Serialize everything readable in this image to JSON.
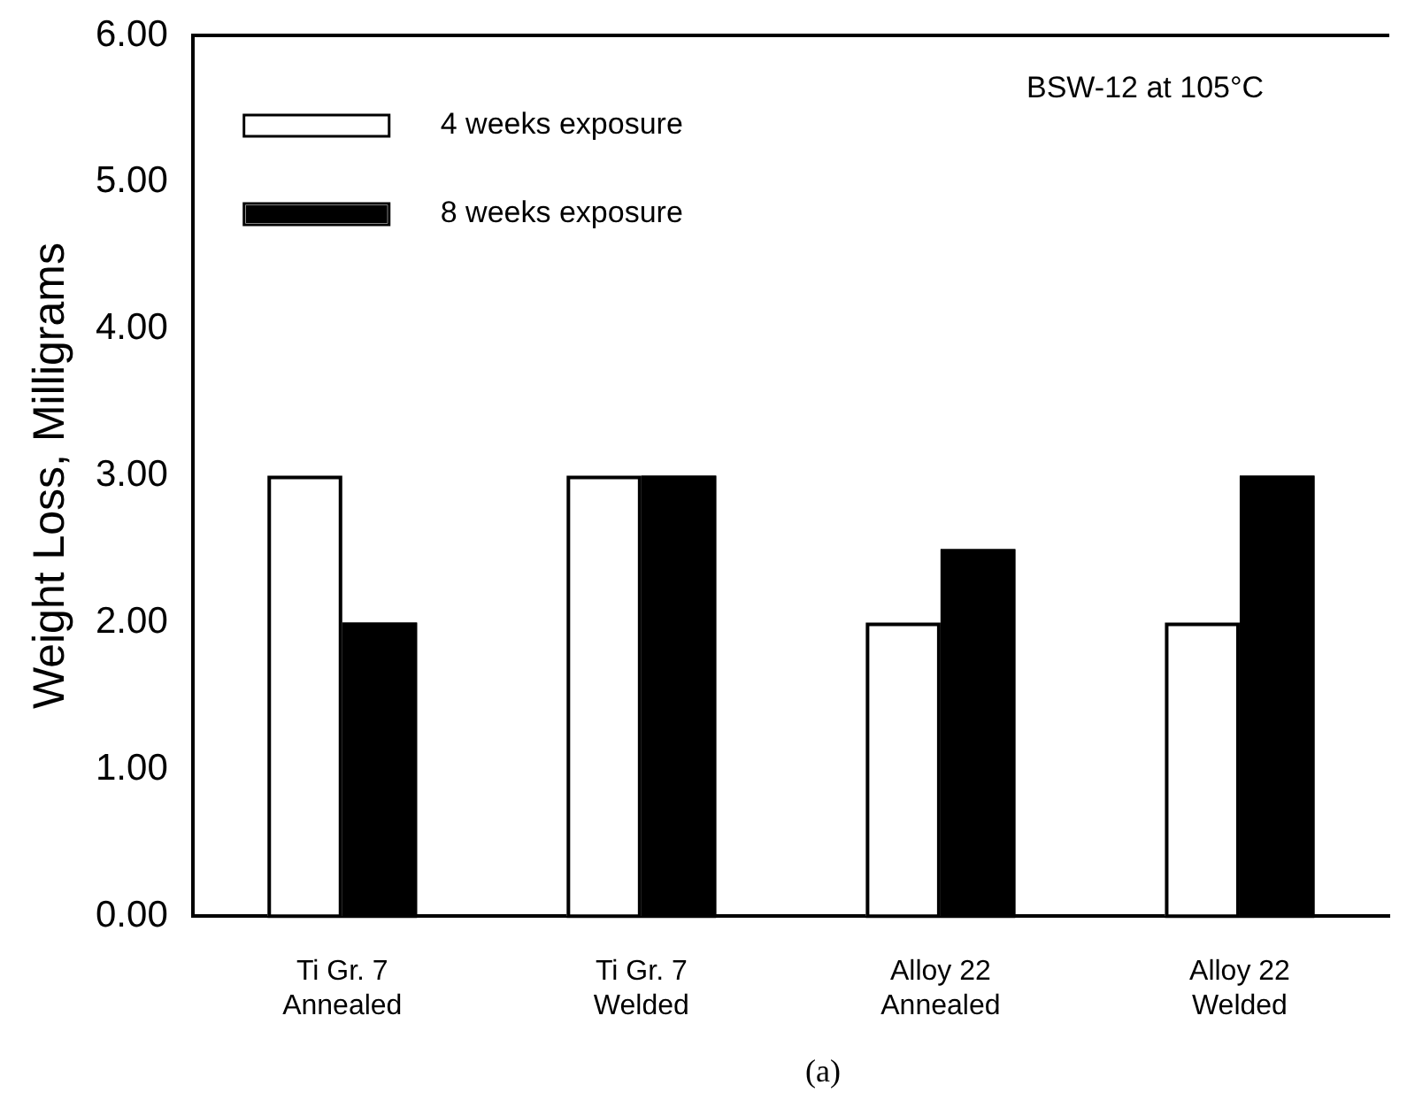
{
  "chart_data": {
    "type": "bar",
    "ylabel": "Weight Loss, Milligrams",
    "categories": [
      "Ti Gr. 7\nAnnealed",
      "Ti Gr. 7\nWelded",
      "Alloy 22\nAnnealed",
      "Alloy 22\nWelded"
    ],
    "series": [
      {
        "name": "4 weeks exposure",
        "color": "#ffffff",
        "values": [
          3.0,
          3.0,
          2.0,
          2.0
        ]
      },
      {
        "name": "8 weeks exposure",
        "color": "#000000",
        "values": [
          2.0,
          3.0,
          2.5,
          3.0
        ]
      }
    ],
    "ylim": [
      0,
      6
    ],
    "yticks": [
      {
        "value": 0,
        "label": "0.00"
      },
      {
        "value": 1,
        "label": "1.00"
      },
      {
        "value": 2,
        "label": "2.00"
      },
      {
        "value": 3,
        "label": "3.00"
      },
      {
        "value": 4,
        "label": "4.00"
      },
      {
        "value": 5,
        "label": "5.00"
      },
      {
        "value": 6,
        "label": "6.00"
      }
    ],
    "grid": false,
    "legend": "top left",
    "annotations": [
      "BSW-12 at 105°C",
      "(a)"
    ]
  }
}
